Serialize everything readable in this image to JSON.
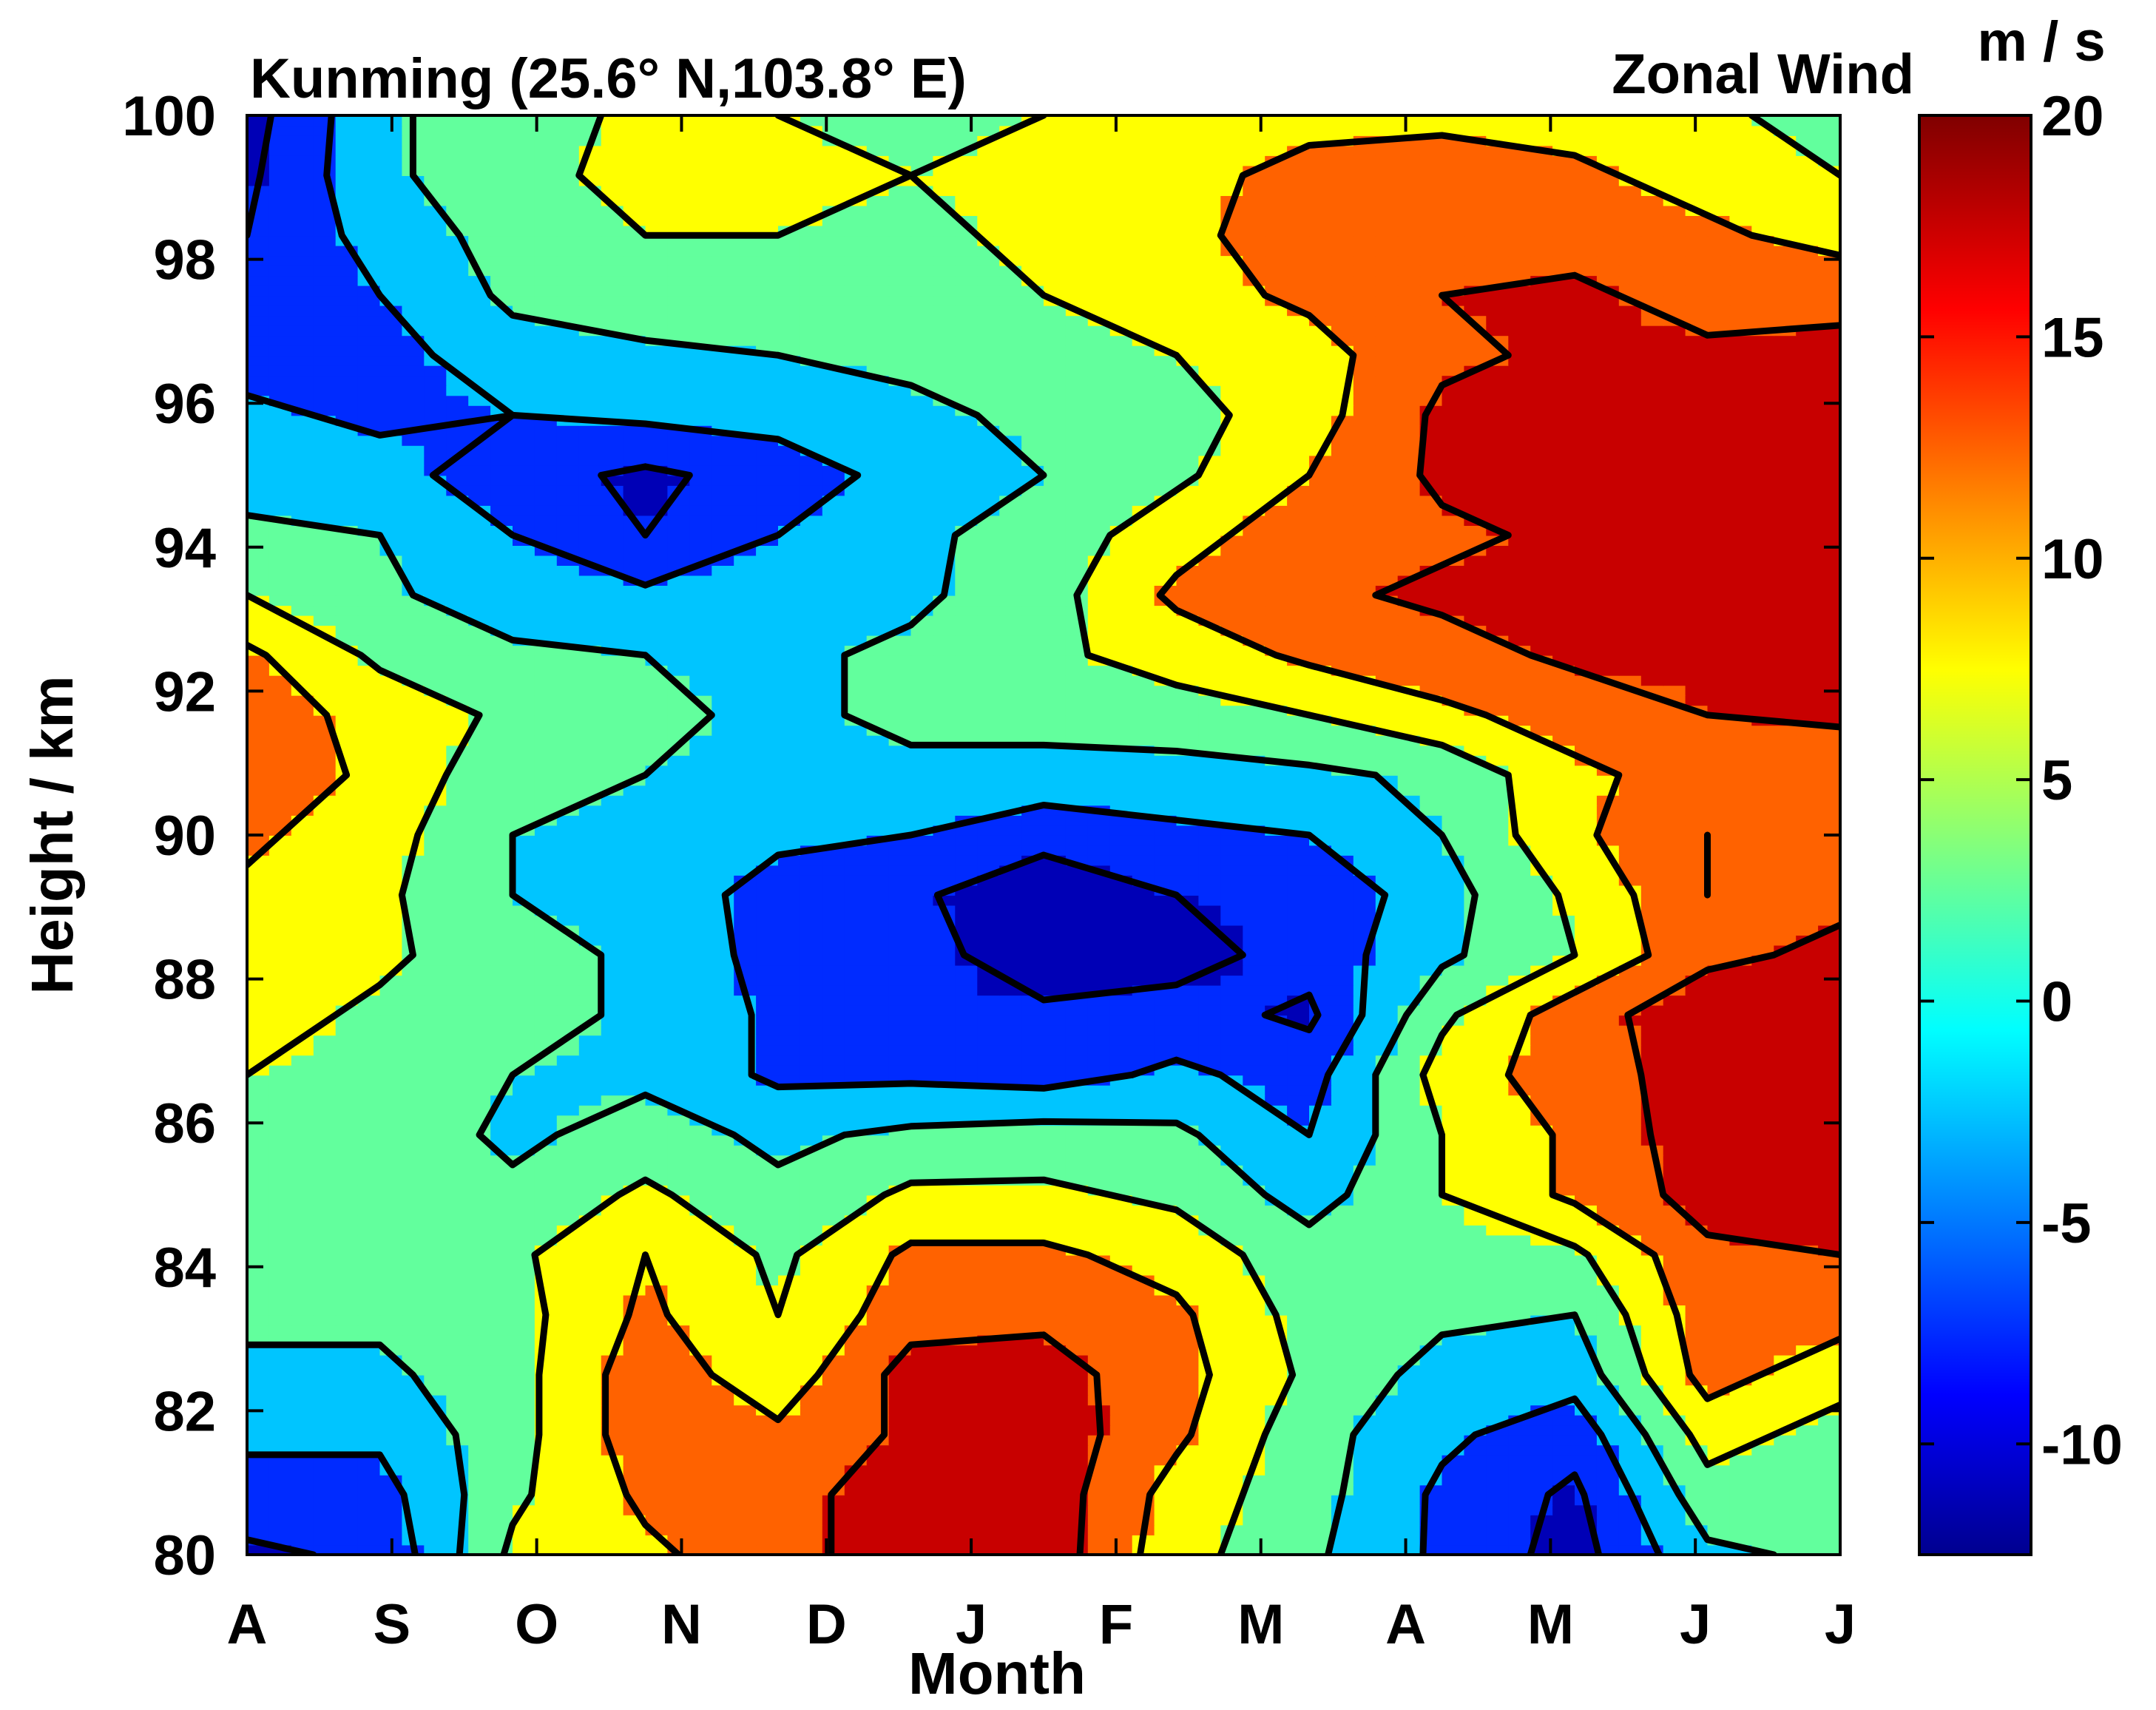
{
  "chart_data": {
    "type": "heatmap",
    "subtype": "filled-contour",
    "title_left": "Kunming (25.6° N,103.8° E)",
    "title_right": "Zonal Wind",
    "xlabel": "Month",
    "ylabel": "Height / km",
    "colorbar_unit": "m / s",
    "x_ticks": [
      "A",
      "S",
      "O",
      "N",
      "D",
      "J",
      "F",
      "M",
      "A",
      "M",
      "J",
      "J"
    ],
    "y_ticks": [
      80,
      82,
      84,
      86,
      88,
      90,
      92,
      94,
      96,
      98,
      100
    ],
    "ylim": [
      80,
      100
    ],
    "clim": [
      -12.5,
      20
    ],
    "colorbar_ticks": [
      20,
      15,
      10,
      5,
      0,
      -5,
      -10
    ],
    "contour_levels": [
      -10,
      -5,
      0,
      5,
      10,
      15
    ],
    "colormap": "jet",
    "heights": [
      80,
      82,
      84,
      86,
      88,
      90,
      92,
      94,
      96,
      98,
      100
    ],
    "z": [
      [
        -11,
        -9,
        6,
        9,
        13,
        18,
        18,
        7,
        1,
        -6,
        -12,
        -1,
        1
      ],
      [
        -7,
        -7,
        4,
        11,
        13,
        18,
        18,
        8,
        2,
        -6,
        -11,
        3,
        1
      ],
      [
        -4,
        -4,
        3,
        13,
        11,
        16,
        18,
        11,
        2,
        -4,
        -8,
        7,
        3
      ],
      [
        -1,
        -1,
        3,
        13,
        7,
        17,
        17,
        12,
        4,
        -2,
        -3,
        12,
        7
      ],
      [
        1,
        1,
        3,
        11,
        5,
        13,
        14,
        11,
        3,
        1,
        0,
        13,
        12
      ],
      [
        2,
        2,
        4,
        10,
        4,
        11,
        11,
        8,
        2,
        3,
        4,
        14,
        15
      ],
      [
        3,
        3,
        1,
        6,
        1,
        6,
        6,
        4,
        -2,
        5,
        11,
        17,
        18
      ],
      [
        4,
        3,
        -1,
        2,
        -1,
        1,
        2,
        1,
        -5,
        5,
        11,
        18,
        19
      ],
      [
        5,
        4,
        0,
        -1,
        -6,
        -6,
        -7,
        -4,
        -7,
        7,
        13,
        17,
        18
      ],
      [
        7,
        4,
        2,
        -1,
        -6,
        -10,
        -9,
        -8,
        -11,
        4,
        13,
        18,
        16
      ],
      [
        8,
        6,
        2,
        -1,
        -7,
        -8,
        -13,
        -12,
        -8,
        -1,
        5,
        14,
        16
      ],
      [
        9,
        6,
        0,
        -2,
        -7,
        -9,
        -14,
        -10,
        -9,
        -2,
        6,
        15,
        14
      ],
      [
        11,
        7,
        0,
        -1,
        -4,
        -5,
        -8,
        -6,
        -5,
        0,
        9,
        15,
        14
      ],
      [
        13,
        9,
        1,
        0,
        -1,
        -1,
        -2,
        -2,
        -1,
        1,
        9,
        12,
        11
      ],
      [
        13,
        8,
        4,
        1,
        -1,
        1,
        2,
        3,
        5,
        9,
        12,
        15,
        16
      ],
      [
        11,
        4,
        1,
        0,
        -1,
        1,
        4,
        7,
        11,
        13,
        16,
        16,
        16
      ],
      [
        5,
        1,
        -3,
        -4,
        -3,
        -1,
        3,
        11,
        14,
        16,
        17,
        16,
        16
      ],
      [
        1,
        0,
        -5,
        -10,
        -5,
        -1,
        2,
        8,
        13,
        14,
        16,
        16,
        16
      ],
      [
        -2,
        -3,
        -8,
        -11,
        -8,
        -3,
        0,
        4,
        10,
        16,
        19,
        17,
        16
      ],
      [
        -4,
        -6,
        -5,
        -4,
        -3,
        -1,
        1,
        3,
        8,
        16,
        18,
        17,
        16
      ],
      [
        -7,
        -7,
        -2,
        -1,
        0,
        1,
        3,
        5,
        8,
        14,
        16,
        16,
        16
      ],
      [
        -9,
        -5,
        1,
        3,
        2,
        3,
        5,
        8,
        11,
        15,
        16,
        13,
        14
      ],
      [
        -10,
        -3,
        2,
        5,
        5,
        4,
        6,
        9,
        12,
        13,
        13,
        11,
        8
      ],
      [
        -11,
        -1,
        3,
        7,
        6,
        5,
        6,
        9,
        11,
        12,
        11,
        8,
        5
      ],
      [
        -12,
        -1,
        3,
        6,
        5,
        4,
        5,
        8,
        9,
        9,
        8,
        6,
        3
      ]
    ]
  }
}
